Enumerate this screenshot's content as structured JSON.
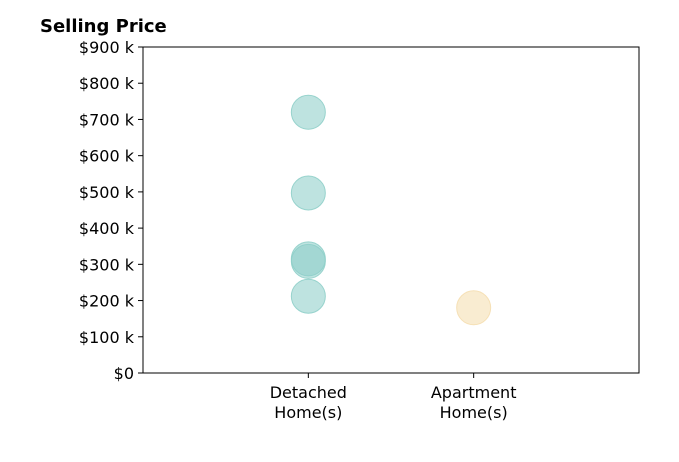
{
  "chart_data": {
    "type": "scatter",
    "title": "Selling Price",
    "xlabel": "",
    "ylabel": "",
    "categories": [
      "Detached\nHome(s)",
      "Apartment\nHome(s)"
    ],
    "yticks": [
      "$0",
      "$100 k",
      "$200 k",
      "$300 k",
      "$400 k",
      "$500 k",
      "$600 k",
      "$700 k",
      "$800 k",
      "$900 k"
    ],
    "ylim": [
      0,
      900
    ],
    "xlim": [
      -1,
      2
    ],
    "grid": false,
    "series": [
      {
        "category": "Detached\nHome(s)",
        "color": "#8fcfc9",
        "values": [
          720,
          497,
          315,
          308,
          212
        ]
      },
      {
        "category": "Apartment\nHome(s)",
        "color": "#f5deb0",
        "values": [
          180
        ]
      }
    ]
  }
}
